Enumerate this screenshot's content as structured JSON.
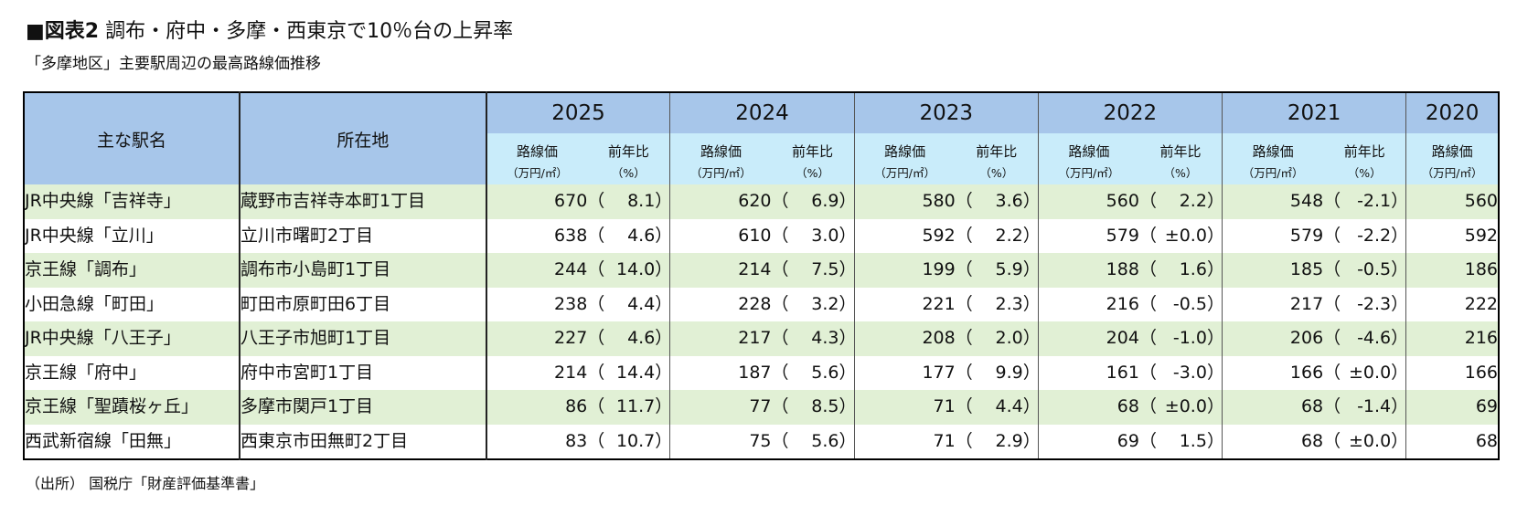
{
  "title": {
    "lead": "■図表2",
    "text": "調布・府中・多摩・西東京で10％台の上昇率"
  },
  "subtitle": "「多摩地区」主要駅周辺の最高路線価推移",
  "source": "（出所） 国税庁「財産評価基準書」",
  "headers": {
    "station": "主な駅名",
    "location": "所在地",
    "years": [
      "2025",
      "2024",
      "2023",
      "2022",
      "2021",
      "2020"
    ],
    "price_label": "路線価",
    "price_unit": "（万円/㎡）",
    "change_label": "前年比",
    "change_unit": "（%）",
    "paren_open": "（",
    "paren_close": "）"
  },
  "rows": [
    {
      "station": "JR中央線「吉祥寺」",
      "location": "蔵野市吉祥寺本町1丁目",
      "values": [
        {
          "price": "670",
          "change": "8.1"
        },
        {
          "price": "620",
          "change": "6.9"
        },
        {
          "price": "580",
          "change": "3.6"
        },
        {
          "price": "560",
          "change": "2.2"
        },
        {
          "price": "548",
          "change": "-2.1"
        }
      ],
      "price2020": "560"
    },
    {
      "station": "JR中央線「立川」",
      "location": "立川市曙町2丁目",
      "values": [
        {
          "price": "638",
          "change": "4.6"
        },
        {
          "price": "610",
          "change": "3.0"
        },
        {
          "price": "592",
          "change": "2.2"
        },
        {
          "price": "579",
          "change": "±0.0"
        },
        {
          "price": "579",
          "change": "-2.2"
        }
      ],
      "price2020": "592"
    },
    {
      "station": "京王線「調布」",
      "location": "調布市小島町1丁目",
      "values": [
        {
          "price": "244",
          "change": "14.0"
        },
        {
          "price": "214",
          "change": "7.5"
        },
        {
          "price": "199",
          "change": "5.9"
        },
        {
          "price": "188",
          "change": "1.6"
        },
        {
          "price": "185",
          "change": "-0.5"
        }
      ],
      "price2020": "186"
    },
    {
      "station": "小田急線「町田」",
      "location": "町田市原町田6丁目",
      "values": [
        {
          "price": "238",
          "change": "4.4"
        },
        {
          "price": "228",
          "change": "3.2"
        },
        {
          "price": "221",
          "change": "2.3"
        },
        {
          "price": "216",
          "change": "-0.5"
        },
        {
          "price": "217",
          "change": "-2.3"
        }
      ],
      "price2020": "222"
    },
    {
      "station": "JR中央線「八王子」",
      "location": "八王子市旭町1丁目",
      "values": [
        {
          "price": "227",
          "change": "4.6"
        },
        {
          "price": "217",
          "change": "4.3"
        },
        {
          "price": "208",
          "change": "2.0"
        },
        {
          "price": "204",
          "change": "-1.0"
        },
        {
          "price": "206",
          "change": "-4.6"
        }
      ],
      "price2020": "216"
    },
    {
      "station": "京王線「府中」",
      "location": "府中市宮町1丁目",
      "values": [
        {
          "price": "214",
          "change": "14.4"
        },
        {
          "price": "187",
          "change": "5.6"
        },
        {
          "price": "177",
          "change": "9.9"
        },
        {
          "price": "161",
          "change": "-3.0"
        },
        {
          "price": "166",
          "change": "±0.0"
        }
      ],
      "price2020": "166"
    },
    {
      "station": "京王線「聖蹟桜ヶ丘」",
      "location": "多摩市関戸1丁目",
      "values": [
        {
          "price": "86",
          "change": "11.7"
        },
        {
          "price": "77",
          "change": "8.5"
        },
        {
          "price": "71",
          "change": "4.4"
        },
        {
          "price": "68",
          "change": "±0.0"
        },
        {
          "price": "68",
          "change": "-1.4"
        }
      ],
      "price2020": "69"
    },
    {
      "station": "西武新宿線「田無」",
      "location": "西東京市田無町2丁目",
      "values": [
        {
          "price": "83",
          "change": "10.7"
        },
        {
          "price": "75",
          "change": "5.6"
        },
        {
          "price": "71",
          "change": "2.9"
        },
        {
          "price": "69",
          "change": "1.5"
        },
        {
          "price": "68",
          "change": "±0.0"
        }
      ],
      "price2020": "68"
    }
  ],
  "colors": {
    "header": "#a7c6ea",
    "subheader": "#c9ecfa",
    "row_alt": "#e1f0d5"
  }
}
